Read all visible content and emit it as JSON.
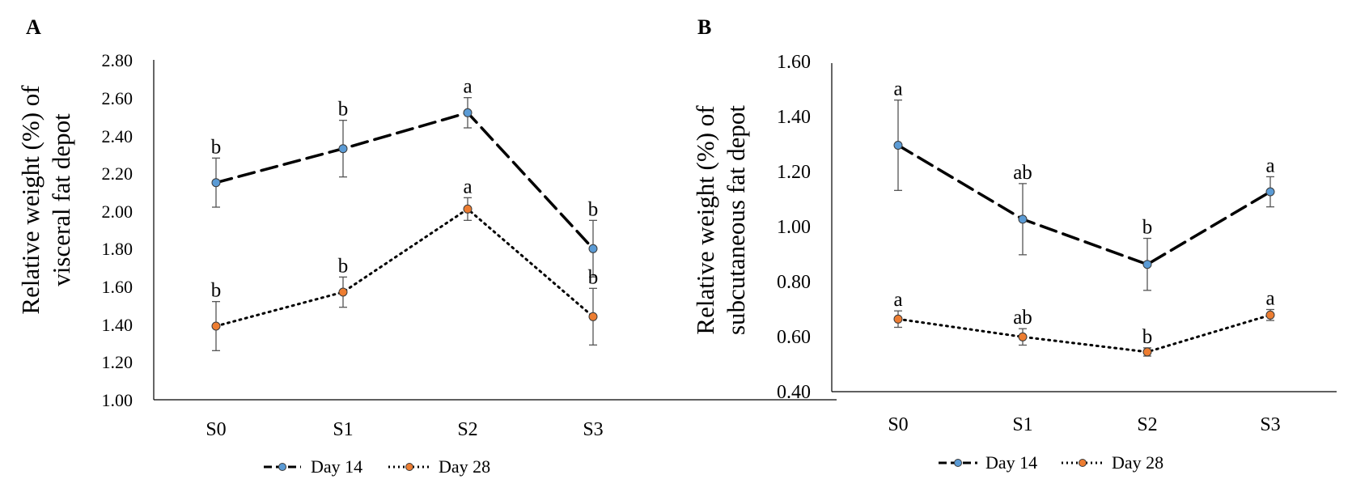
{
  "chart_data": [
    {
      "type": "line",
      "panel": "A",
      "ylabel": [
        "Relative weight (%) of",
        "visceral fat depot"
      ],
      "xlabel": "",
      "categories": [
        "S0",
        "S1",
        "S2",
        "S3"
      ],
      "ylim": [
        1.0,
        2.8
      ],
      "yticks": [
        "1.00",
        "1.20",
        "1.40",
        "1.60",
        "1.80",
        "2.00",
        "2.20",
        "2.40",
        "2.60",
        "2.80"
      ],
      "legend_position": "bottom",
      "series": [
        {
          "name": "Day 14",
          "line_style": "dashed",
          "marker_color": "#5b9bd5",
          "values": [
            2.15,
            2.33,
            2.52,
            1.8
          ],
          "error": [
            0.13,
            0.15,
            0.08,
            0.15
          ],
          "labels": [
            "b",
            "b",
            "a",
            "b"
          ]
        },
        {
          "name": "Day 28",
          "line_style": "dotted",
          "marker_color": "#ed7d31",
          "values": [
            1.39,
            1.57,
            2.01,
            1.44
          ],
          "error": [
            0.13,
            0.08,
            0.06,
            0.15
          ],
          "labels": [
            "b",
            "b",
            "a",
            "b"
          ]
        }
      ]
    },
    {
      "type": "line",
      "panel": "B",
      "ylabel": [
        "Relative weight (%) of",
        "subcutaneous fat depot"
      ],
      "xlabel": "",
      "categories": [
        "S0",
        "S1",
        "S2",
        "S3"
      ],
      "ylim": [
        0.4,
        1.6
      ],
      "yticks": [
        "0.40",
        "0.60",
        "0.80",
        "1.00",
        "1.20",
        "1.40",
        "1.60"
      ],
      "legend_position": "bottom",
      "series": [
        {
          "name": "Day 14",
          "line_style": "dashed",
          "marker_color": "#5b9bd5",
          "values": [
            1.3,
            1.03,
            0.865,
            1.13
          ],
          "error": [
            0.165,
            0.13,
            0.095,
            0.055
          ],
          "labels": [
            "a",
            "ab",
            "b",
            "a"
          ]
        },
        {
          "name": "Day 28",
          "line_style": "dotted",
          "marker_color": "#ed7d31",
          "values": [
            0.665,
            0.6,
            0.545,
            0.68
          ],
          "error": [
            0.03,
            0.03,
            0.015,
            0.02
          ],
          "labels": [
            "a",
            "ab",
            "b",
            "a"
          ]
        }
      ]
    }
  ]
}
